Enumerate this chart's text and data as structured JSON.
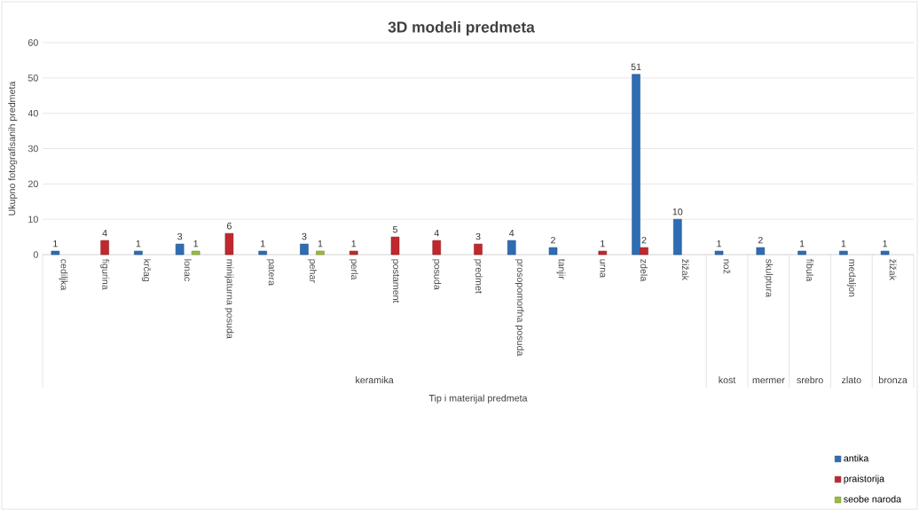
{
  "chart_data": {
    "type": "bar",
    "title": "3D modeli predmeta",
    "xlabel": "Tip i materijal predmeta",
    "ylabel": "Ukupno fotografisanih predmeta",
    "categories": [
      "cediljka",
      "figurina",
      "krčag",
      "lonac",
      "minijaturna posuda",
      "patera",
      "pehar",
      "perla",
      "postament",
      "posuda",
      "predmet",
      "prosopomorfna posuda",
      "tanjir",
      "urna",
      "zdela",
      "žižak",
      "nož",
      "skulptura",
      "fibula",
      "medaljon",
      "žižak"
    ],
    "series": [
      {
        "name": "antika",
        "color": "#2e6db4",
        "values": [
          1,
          null,
          1,
          3,
          null,
          1,
          3,
          null,
          null,
          null,
          null,
          4,
          2,
          null,
          51,
          10,
          1,
          2,
          1,
          1,
          1
        ]
      },
      {
        "name": "praistorija",
        "color": "#c0282d",
        "values": [
          null,
          4,
          null,
          null,
          6,
          null,
          null,
          1,
          5,
          4,
          3,
          null,
          null,
          1,
          2,
          null,
          null,
          null,
          null,
          null,
          null
        ]
      },
      {
        "name": "seobe naroda",
        "color": "#9bbb3c",
        "values": [
          null,
          null,
          null,
          1,
          null,
          null,
          1,
          null,
          null,
          null,
          null,
          null,
          null,
          null,
          null,
          null,
          null,
          null,
          null,
          null,
          null
        ]
      }
    ],
    "annotations": [
      "keramika",
      "kost",
      "mermer",
      "srebro",
      "zlato",
      "bronza"
    ],
    "ylim": [
      0,
      60
    ],
    "yticks": [
      0,
      10,
      20,
      30,
      40,
      50,
      60
    ],
    "grid": "y",
    "legend": "bottom right",
    "data_labels": true
  }
}
